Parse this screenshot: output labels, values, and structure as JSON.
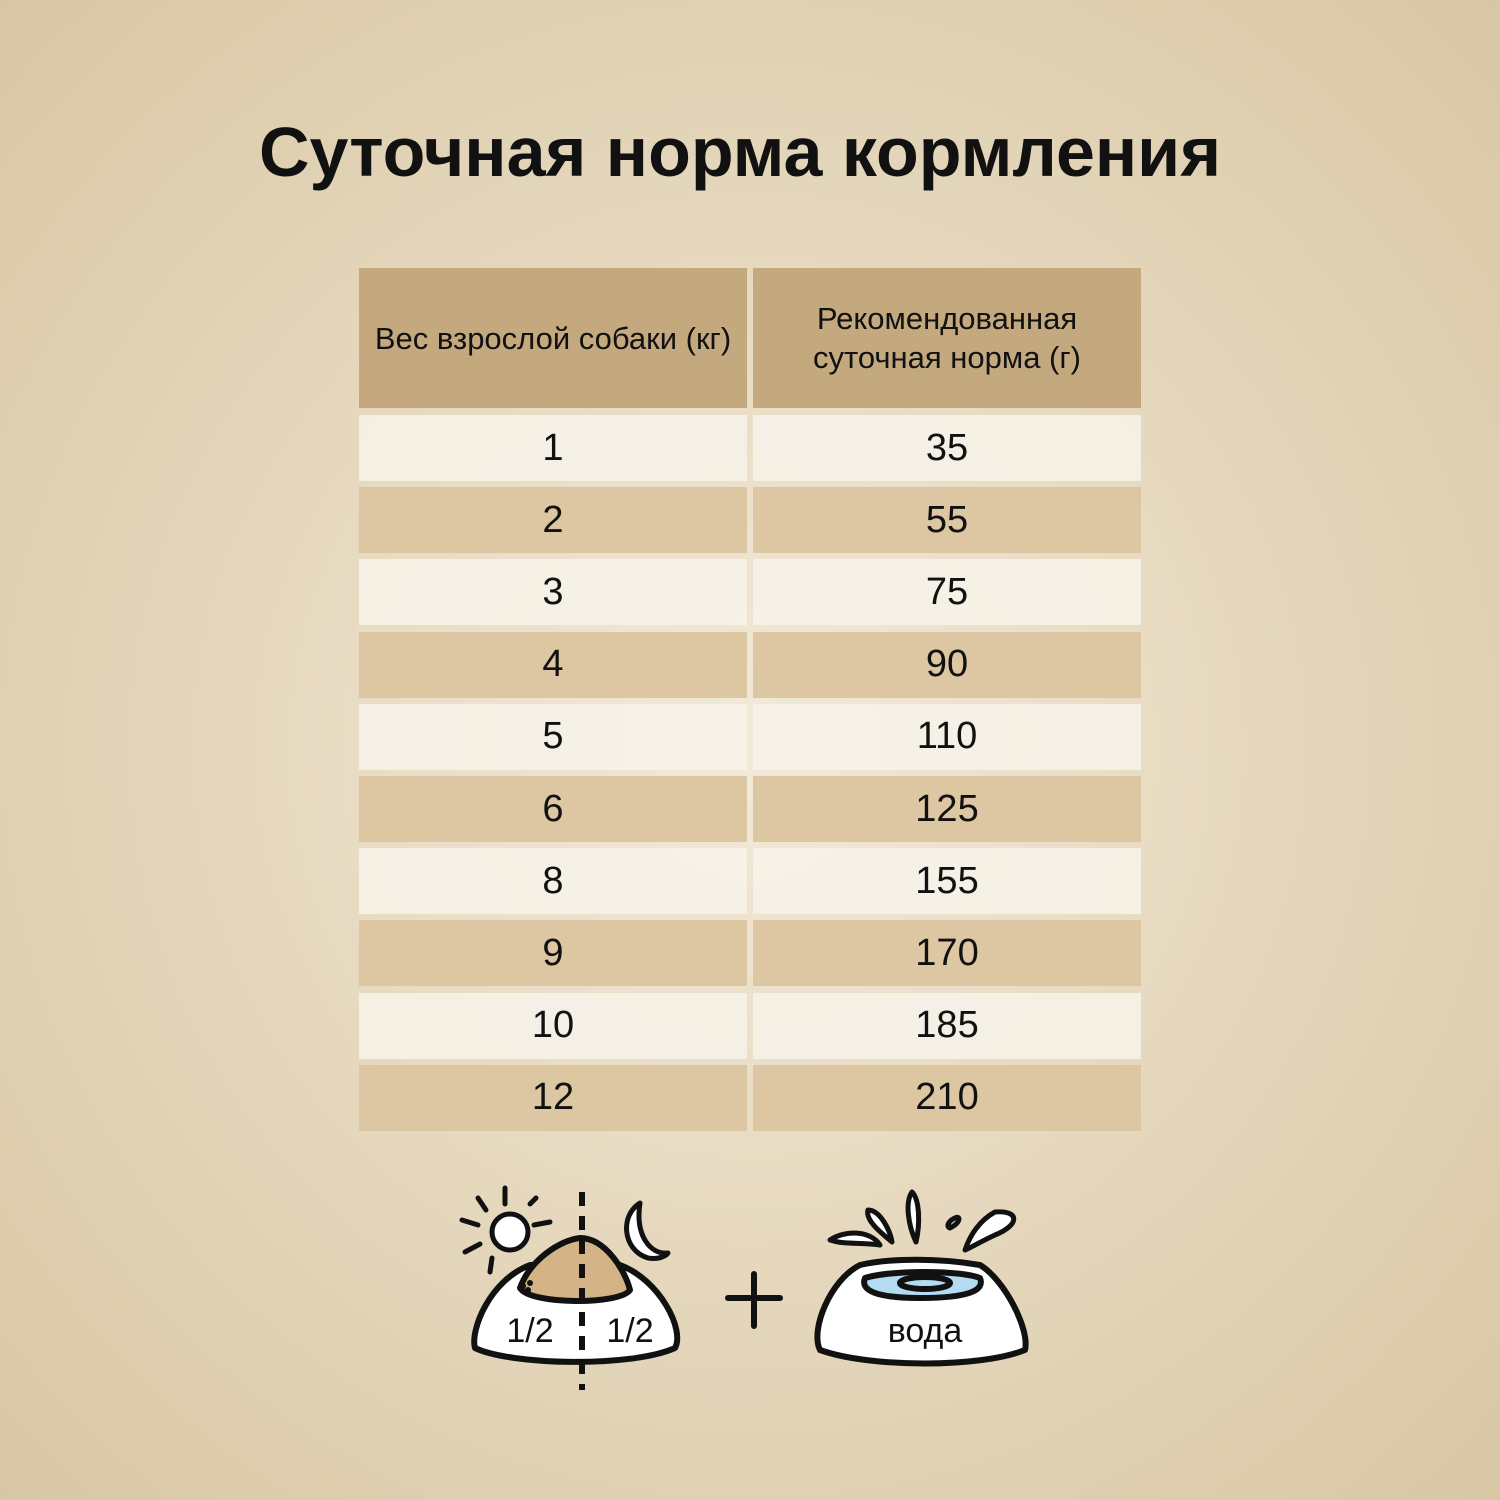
{
  "title": "Суточная норма кормления",
  "table": {
    "headers": [
      "Вес взрослой собаки (кг)",
      "Рекомендованная суточная норма (г)"
    ],
    "rows": [
      [
        "1",
        "35"
      ],
      [
        "2",
        "55"
      ],
      [
        "3",
        "75"
      ],
      [
        "4",
        "90"
      ],
      [
        "5",
        "110"
      ],
      [
        "6",
        "125"
      ],
      [
        "8",
        "155"
      ],
      [
        "9",
        "170"
      ],
      [
        "10",
        "185"
      ],
      [
        "12",
        "210"
      ]
    ]
  },
  "footer": {
    "half_left": "1/2",
    "half_right": "1/2",
    "water_label": "вода",
    "plus": "+"
  },
  "colors": {
    "header": "#c4a97f",
    "row_dark": "#ddc7a3",
    "row_light": "#f5f0e5",
    "food": "#d4b487",
    "water": "#b3dcf2"
  }
}
